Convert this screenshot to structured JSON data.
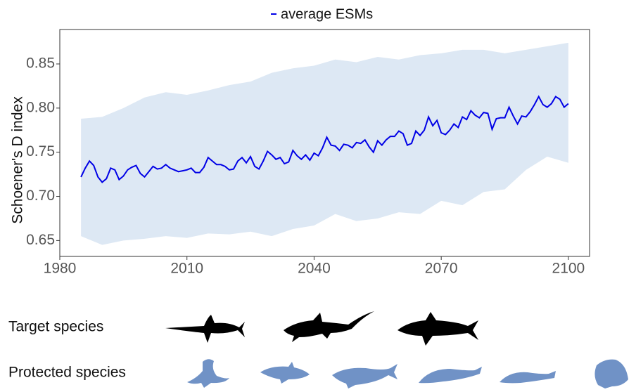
{
  "chart_data": {
    "type": "line",
    "y_label": "Schoener's D index",
    "xlim": [
      1980,
      2105
    ],
    "ylim": [
      0.632,
      0.889
    ],
    "xticks": [
      1980,
      2010,
      2040,
      2070,
      2100
    ],
    "yticks": [
      0.65,
      {
        "value": 0.7,
        "label": "0.70"
      },
      0.75,
      {
        "value": 0.8,
        "label": "0.80"
      },
      0.85
    ],
    "grid": false,
    "legend": "top",
    "x": [
      1985,
      1986,
      1987,
      1988,
      1989,
      1990,
      1991,
      1992,
      1993,
      1994,
      1995,
      1996,
      1997,
      1998,
      1999,
      2000,
      2001,
      2002,
      2003,
      2004,
      2005,
      2006,
      2007,
      2008,
      2009,
      2010,
      2011,
      2012,
      2013,
      2014,
      2015,
      2016,
      2017,
      2018,
      2019,
      2020,
      2021,
      2022,
      2023,
      2024,
      2025,
      2026,
      2027,
      2028,
      2029,
      2030,
      2031,
      2032,
      2033,
      2034,
      2035,
      2036,
      2037,
      2038,
      2039,
      2040,
      2041,
      2042,
      2043,
      2044,
      2045,
      2046,
      2047,
      2048,
      2049,
      2050,
      2051,
      2052,
      2053,
      2054,
      2055,
      2056,
      2057,
      2058,
      2059,
      2060,
      2061,
      2062,
      2063,
      2064,
      2065,
      2066,
      2067,
      2068,
      2069,
      2070,
      2071,
      2072,
      2073,
      2074,
      2075,
      2076,
      2077,
      2078,
      2079,
      2080,
      2081,
      2082,
      2083,
      2084,
      2085,
      2086,
      2087,
      2088,
      2089,
      2090,
      2091,
      2092,
      2093,
      2094,
      2095,
      2096,
      2097,
      2098,
      2099,
      2100
    ],
    "series": [
      {
        "name": "average ESMs",
        "color": "#0000e6",
        "values": [
          0.722,
          0.732,
          0.74,
          0.735,
          0.722,
          0.716,
          0.72,
          0.732,
          0.73,
          0.719,
          0.723,
          0.73,
          0.733,
          0.735,
          0.726,
          0.722,
          0.728,
          0.734,
          0.731,
          0.732,
          0.736,
          0.732,
          0.73,
          0.728,
          0.729,
          0.73,
          0.732,
          0.727,
          0.727,
          0.733,
          0.744,
          0.74,
          0.736,
          0.736,
          0.734,
          0.73,
          0.731,
          0.74,
          0.744,
          0.738,
          0.745,
          0.734,
          0.731,
          0.74,
          0.751,
          0.747,
          0.742,
          0.744,
          0.737,
          0.739,
          0.752,
          0.746,
          0.742,
          0.747,
          0.741,
          0.749,
          0.746,
          0.755,
          0.767,
          0.758,
          0.757,
          0.752,
          0.759,
          0.758,
          0.755,
          0.761,
          0.76,
          0.764,
          0.756,
          0.75,
          0.763,
          0.758,
          0.764,
          0.768,
          0.768,
          0.774,
          0.771,
          0.758,
          0.76,
          0.774,
          0.769,
          0.775,
          0.79,
          0.78,
          0.786,
          0.772,
          0.77,
          0.775,
          0.782,
          0.778,
          0.79,
          0.787,
          0.797,
          0.792,
          0.789,
          0.795,
          0.794,
          0.776,
          0.788,
          0.789,
          0.789,
          0.801,
          0.791,
          0.782,
          0.791,
          0.79,
          0.796,
          0.804,
          0.813,
          0.804,
          0.801,
          0.805,
          0.813,
          0.81,
          0.801,
          0.805
        ]
      }
    ],
    "band": {
      "color": "#dde8f4",
      "x": [
        1985,
        1990,
        1995,
        2000,
        2005,
        2010,
        2015,
        2020,
        2025,
        2030,
        2035,
        2040,
        2045,
        2050,
        2055,
        2060,
        2065,
        2070,
        2075,
        2080,
        2085,
        2090,
        2095,
        2100
      ],
      "upper": [
        0.788,
        0.79,
        0.8,
        0.812,
        0.818,
        0.815,
        0.82,
        0.826,
        0.83,
        0.84,
        0.845,
        0.848,
        0.855,
        0.852,
        0.858,
        0.855,
        0.86,
        0.862,
        0.866,
        0.866,
        0.862,
        0.866,
        0.87,
        0.874
      ],
      "lower": [
        0.655,
        0.645,
        0.65,
        0.652,
        0.655,
        0.653,
        0.658,
        0.657,
        0.66,
        0.655,
        0.663,
        0.667,
        0.68,
        0.672,
        0.675,
        0.682,
        0.68,
        0.695,
        0.69,
        0.705,
        0.708,
        0.73,
        0.745,
        0.738
      ]
    }
  },
  "species": {
    "target_label": "Target species",
    "protected_label": "Protected species"
  }
}
